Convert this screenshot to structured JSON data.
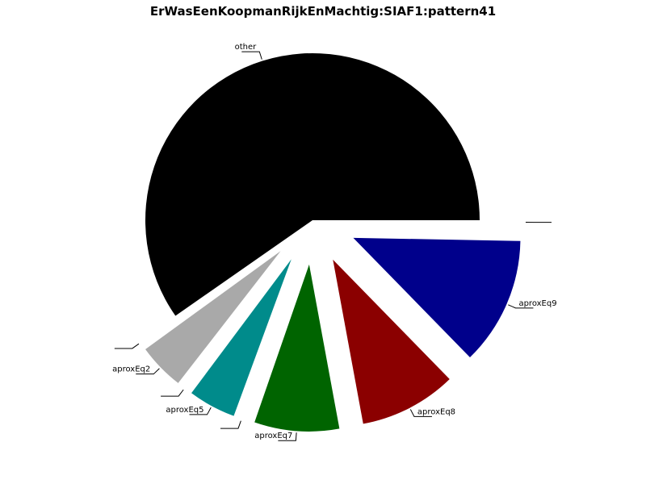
{
  "chart_data": {
    "type": "pie",
    "title": "ErWasEenKoopmanRijkEnMachtig:SIAF1:pattern41",
    "start_angle_deg": 0,
    "direction": "clockwise",
    "exploded": true,
    "slices": [
      {
        "label": "",
        "value": 0.3,
        "color": "#ffffff"
      },
      {
        "label": "aproxEq9",
        "value": 12.4,
        "color": "#00008b"
      },
      {
        "label": "aproxEq8",
        "value": 9.4,
        "color": "#8b0000"
      },
      {
        "label": "aproxEq7",
        "value": 8.2,
        "color": "#006400"
      },
      {
        "label": "",
        "value": 0.3,
        "color": "#ffffff"
      },
      {
        "label": "aproxEq5",
        "value": 4.6,
        "color": "#008b8b"
      },
      {
        "label": "",
        "value": 0.3,
        "color": "#ffffff"
      },
      {
        "label": "aproxEq2",
        "value": 4.5,
        "color": "#a9a9a9"
      },
      {
        "label": "",
        "value": 0.3,
        "color": "#ffffff"
      },
      {
        "label": "other",
        "value": 59.7,
        "color": "#000000"
      }
    ]
  }
}
